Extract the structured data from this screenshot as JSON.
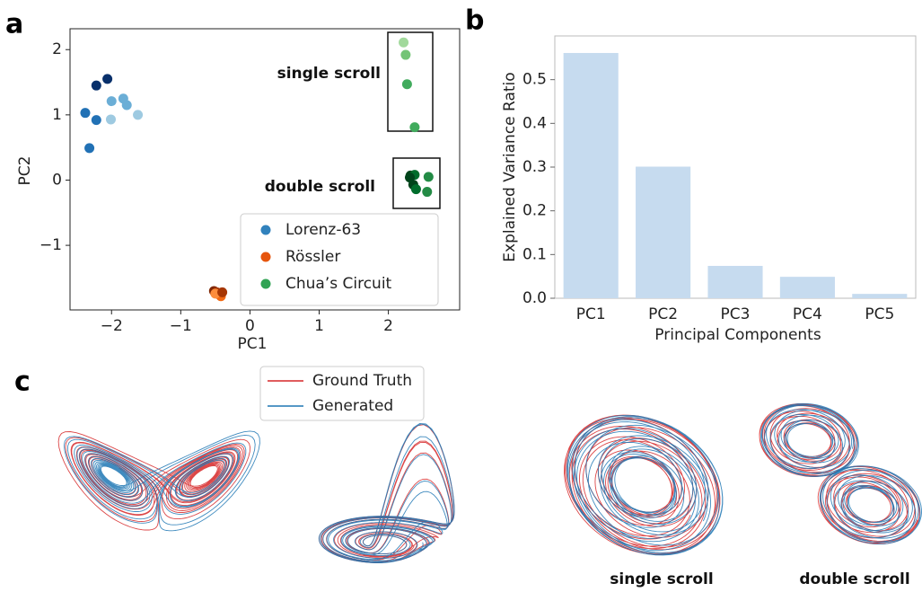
{
  "panel_labels": [
    "a",
    "b",
    "c"
  ],
  "chart_data": [
    {
      "type": "scatter",
      "x_label": "PC1",
      "y_label": "PC2",
      "xlim": [
        -2.6,
        3.03
      ],
      "ylim": [
        -1.99,
        2.32
      ],
      "xticks": [
        {
          "value": -2,
          "label": "−2"
        },
        {
          "value": -1,
          "label": "−1"
        },
        0,
        1,
        2
      ],
      "yticks": [
        {
          "value": -1,
          "label": "−1"
        },
        0,
        1,
        2
      ],
      "annotations": [
        "single scroll",
        "double scroll"
      ],
      "series": [
        {
          "name": "Lorenz-63",
          "color": "#3182bd",
          "colors": [
            "#08306b",
            "#08306b",
            "#2171b5",
            "#6baed6",
            "#6baed6",
            "#6baed6",
            "#9ecae1",
            "#9ecae1",
            "#2171b5",
            "#2171b5"
          ],
          "x": [
            -2.06,
            -2.22,
            -2.38,
            -2.0,
            -1.83,
            -1.78,
            -2.01,
            -1.62,
            -2.22,
            -2.32
          ],
          "y": [
            1.55,
            1.45,
            1.03,
            1.21,
            1.25,
            1.15,
            0.93,
            1.0,
            0.92,
            0.49
          ]
        },
        {
          "name": "Rössler",
          "color": "#e6550d",
          "colors": [
            "#7f2704",
            "#a63603",
            "#d94801",
            "#f16913",
            "#fd8d3c",
            "#a63603"
          ],
          "x": [
            -0.52,
            -0.48,
            -0.45,
            -0.42,
            -0.5,
            -0.4
          ],
          "y": [
            -1.7,
            -1.72,
            -1.75,
            -1.78,
            -1.74,
            -1.72
          ]
        },
        {
          "name": "Chua’s Circuit",
          "color": "#31a354",
          "colors": [
            "#a1d99b",
            "#74c476",
            "#41ab5d",
            "#41ab5d",
            "#00441b",
            "#006d2c",
            "#00441b",
            "#006d2c",
            "#238b45",
            "#238b45",
            "#00441b"
          ],
          "x": [
            2.22,
            2.25,
            2.27,
            2.38,
            2.32,
            2.38,
            2.36,
            2.4,
            2.58,
            2.56,
            2.31
          ],
          "y": [
            2.11,
            1.92,
            1.47,
            0.81,
            0.07,
            0.08,
            -0.07,
            -0.14,
            0.05,
            -0.18,
            0.04
          ]
        }
      ]
    },
    {
      "type": "bar",
      "x_label": "Principal Components",
      "y_label": "Explained Variance Ratio",
      "categories": [
        "PC1",
        "PC2",
        "PC3",
        "PC4",
        "PC5"
      ],
      "values": [
        0.561,
        0.301,
        0.074,
        0.049,
        0.01
      ],
      "color": "#c6dbef",
      "ylim": [
        0,
        0.6
      ],
      "yticks": [
        {
          "value": 0,
          "label": "0.0"
        },
        0.1,
        0.2,
        0.3,
        0.4,
        0.5
      ]
    },
    {
      "type": "attractor",
      "series": [
        {
          "name": "Ground Truth",
          "color": "#d62728"
        },
        {
          "name": "Generated",
          "color": "#1f77b4"
        }
      ],
      "annotations": [
        "single scroll",
        "double scroll"
      ]
    }
  ]
}
